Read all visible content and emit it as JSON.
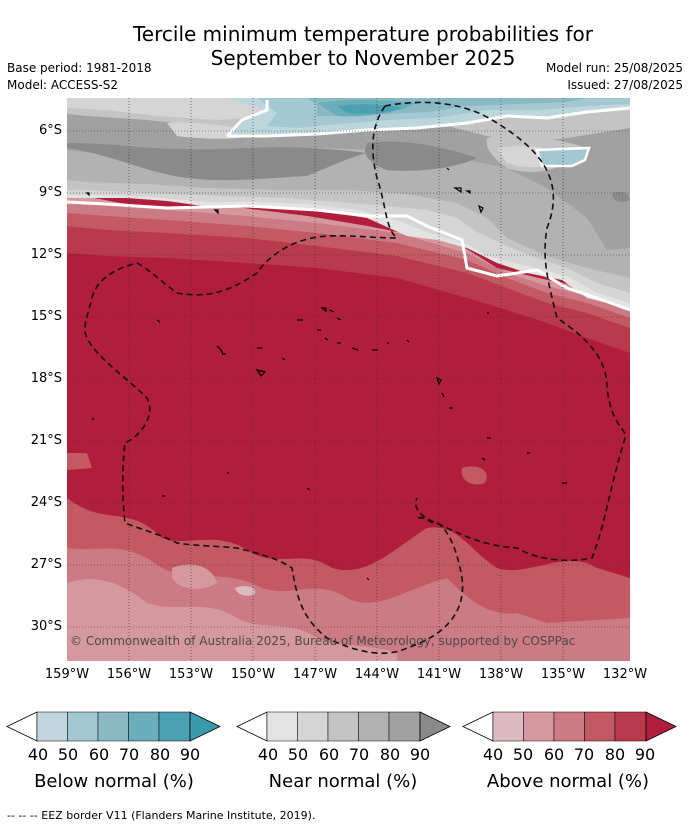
{
  "title": {
    "line1": "Tercile minimum temperature probabilities for",
    "line2": "September to November 2025"
  },
  "meta": {
    "base_period": "Base period: 1981-2018",
    "model": "Model: ACCESS-S2",
    "model_run": "Model run: 25/08/2025",
    "issued": "Issued: 27/08/2025"
  },
  "map": {
    "copyright": "© Commonwealth of Australia 2025, Bureau of Meteorology, supported by COSPPac",
    "lat_labels": [
      "6°S",
      "9°S",
      "12°S",
      "15°S",
      "18°S",
      "21°S",
      "24°S",
      "27°S",
      "30°S"
    ],
    "lon_labels": [
      "159°W",
      "156°W",
      "153°W",
      "150°W",
      "147°W",
      "144°W",
      "141°W",
      "138°W",
      "135°W",
      "132°W"
    ],
    "colors": {
      "above_40": "#ddb9c1",
      "above_50": "#d6989f",
      "above_60": "#cc7a83",
      "above_70": "#c35963",
      "above_80": "#b93a4c",
      "above_90": "#b01e3b",
      "near_40": "#e3e3e3",
      "near_50": "#d5d5d5",
      "near_60": "#c4c4c4",
      "near_70": "#b2b2b2",
      "near_80": "#a1a1a1",
      "near_90": "#8a8a8a",
      "below_40": "#bdd6dc",
      "below_50": "#a3c8d1",
      "below_60": "#8ab9c4",
      "below_70": "#6aaebc",
      "below_80": "#4ba1b2",
      "below_90": "#3a9aac"
    }
  },
  "legend": {
    "ticks": [
      "40",
      "50",
      "60",
      "70",
      "80",
      "90"
    ],
    "below": {
      "title": "Below normal (%)",
      "colors": [
        "#c0d6dc",
        "#a3c8d1",
        "#8ab9c4",
        "#6aaebc",
        "#4ba1b2",
        "#3a9aac"
      ]
    },
    "near": {
      "title": "Near normal (%)",
      "colors": [
        "#e3e3e3",
        "#d5d5d5",
        "#c4c4c4",
        "#b2b2b2",
        "#a1a1a1",
        "#8a8a8a"
      ]
    },
    "above": {
      "title": "Above normal (%)",
      "colors": [
        "#ddb9c1",
        "#d6989f",
        "#cc7a83",
        "#c35963",
        "#b93a4c",
        "#b01e3b"
      ]
    }
  },
  "footnote": "--  --  -- EEZ border V11 (Flanders Marine Institute, 2019)."
}
